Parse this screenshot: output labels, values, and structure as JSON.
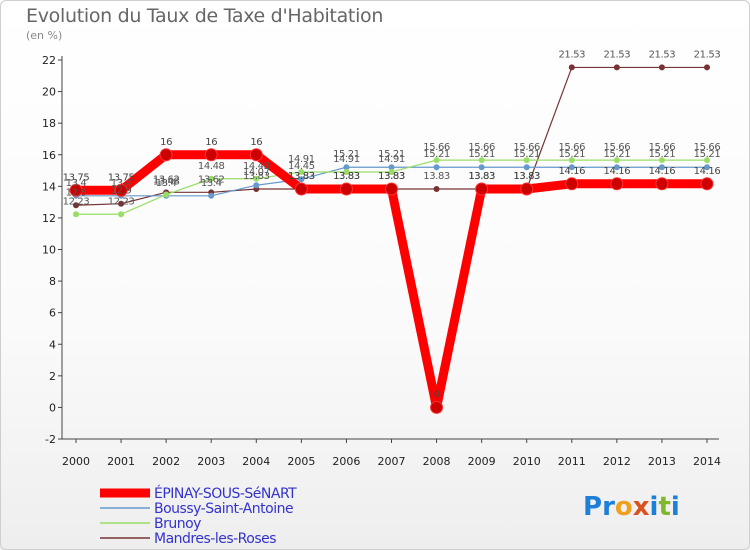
{
  "header": {
    "title": "Evolution du Taux de Taxe d'Habitation",
    "unit": "(en %)"
  },
  "brand": {
    "letters": [
      "P",
      "r",
      "o",
      "x",
      "i",
      "t",
      "i"
    ],
    "colors": [
      "#1e7fd8",
      "#1e7fd8",
      "#f0a020",
      "#d9531e",
      "#1e7fd8",
      "#7fb82a",
      "#1e7fd8"
    ]
  },
  "chart_data": {
    "type": "line",
    "title": "Evolution du Taux de Taxe d'Habitation",
    "ylabel": "(en %)",
    "xlabel": "",
    "x": [
      2000,
      2001,
      2002,
      2003,
      2004,
      2005,
      2006,
      2007,
      2008,
      2009,
      2010,
      2011,
      2012,
      2013,
      2014
    ],
    "yticks": [
      -2,
      0,
      2,
      4,
      6,
      8,
      10,
      12,
      14,
      16,
      18,
      20,
      22
    ],
    "ylim": [
      -2,
      22
    ],
    "grid": false,
    "legend": "bottom",
    "series": [
      {
        "name": "ÉPINAY-SOUS-SéNART",
        "color": "#ff0000",
        "values": [
          13.75,
          13.75,
          16,
          16,
          16,
          13.83,
          13.83,
          13.83,
          0,
          13.83,
          13.83,
          14.16,
          14.16,
          14.16,
          14.16
        ],
        "labels": [
          "13.75",
          "13.75",
          "16",
          "16",
          "16",
          "13.83",
          "13.83",
          "13.83",
          "0",
          "13.83",
          "13.83",
          "14.16",
          "14.16",
          "14.16",
          "14.16"
        ]
      },
      {
        "name": "Boussy-Saint-Antoine",
        "color": "#6699cc",
        "values": [
          13.4,
          13.4,
          13.4,
          13.4,
          14.07,
          14.45,
          15.21,
          15.21,
          15.21,
          15.21,
          15.21,
          15.21,
          15.21,
          15.21,
          15.21
        ],
        "labels": [
          "13.4",
          "13.4",
          "13.4",
          "13.4",
          "14.07",
          "14.45",
          "15.21",
          "15.21",
          "15.21",
          "15.21",
          "15.21",
          "15.21",
          "15.21",
          "15.21",
          "15.21"
        ]
      },
      {
        "name": "Brunoy",
        "color": "#99dd66",
        "values": [
          12.23,
          12.23,
          13.48,
          14.48,
          14.48,
          14.91,
          14.91,
          14.91,
          15.66,
          15.66,
          15.66,
          15.66,
          15.66,
          15.66,
          15.66
        ],
        "labels": [
          "12.23",
          "12.23",
          "13.48",
          "14.48",
          "14.48",
          "14.91",
          "14.91",
          "14.91",
          "15.66",
          "15.66",
          "15.66",
          "15.66",
          "15.66",
          "15.66",
          "15.66"
        ]
      },
      {
        "name": "Mandres-les-Roses",
        "color": "#773333",
        "values": [
          12.8,
          12.9,
          13.62,
          13.62,
          13.83,
          13.83,
          13.83,
          13.83,
          13.83,
          13.83,
          13.83,
          21.53,
          21.53,
          21.53,
          21.53
        ],
        "labels": [
          "12.8",
          "12.9",
          "13.62",
          "13.62",
          "13.83",
          "13.83",
          "13.83",
          "13.83",
          "13.83",
          "13.83",
          "13.83",
          "21.53",
          "21.53",
          "21.53",
          "21.53"
        ]
      }
    ]
  }
}
